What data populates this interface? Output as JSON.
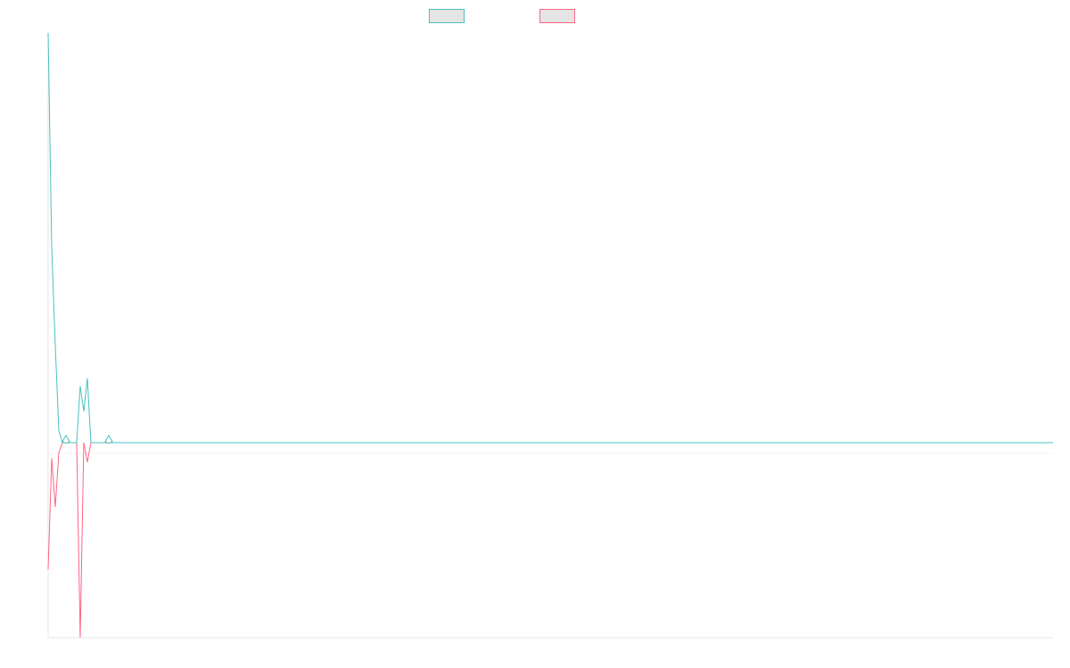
{
  "colors": {
    "teal": "#4bc0c0",
    "pink": "#ff6384",
    "legend_fill": "#e5e5e5",
    "axis": "#e6e6e6"
  },
  "chart_data": {
    "type": "line",
    "title": "",
    "xlabel": "",
    "ylabel": "",
    "grid": false,
    "legend": "top-center",
    "xlim": [
      0,
      282
    ],
    "ylim": [
      -10,
      21
    ],
    "series": [
      {
        "name": "",
        "color": "#4bc0c0",
        "x": [
          0,
          1,
          2,
          3,
          4,
          5,
          6,
          7,
          8,
          9,
          10,
          11,
          12,
          13,
          14,
          15,
          16,
          17,
          18,
          19,
          20,
          21,
          22,
          23,
          24,
          25,
          282
        ],
        "values": [
          21,
          10,
          5,
          0.6,
          0,
          0.1,
          0,
          0,
          0,
          2.9,
          1.6,
          3.3,
          0,
          0,
          0,
          0,
          0,
          0.1,
          0,
          0,
          0,
          0,
          0,
          0,
          0,
          0,
          0
        ],
        "markers": [
          5,
          17
        ]
      },
      {
        "name": "",
        "color": "#ff6384",
        "x": [
          0,
          1,
          2,
          3,
          4,
          5,
          6,
          7,
          8,
          9,
          10,
          11,
          12,
          13,
          14,
          15,
          16,
          17,
          18,
          19,
          20,
          21,
          22,
          23,
          24,
          25,
          282
        ],
        "values": [
          -6.5,
          -0.8,
          -3.3,
          -0.5,
          0,
          0,
          0,
          0,
          0,
          -10,
          0,
          -1,
          0,
          0,
          0,
          0,
          0,
          0,
          0,
          0,
          0,
          0,
          0,
          0,
          0,
          0,
          0
        ]
      }
    ]
  }
}
